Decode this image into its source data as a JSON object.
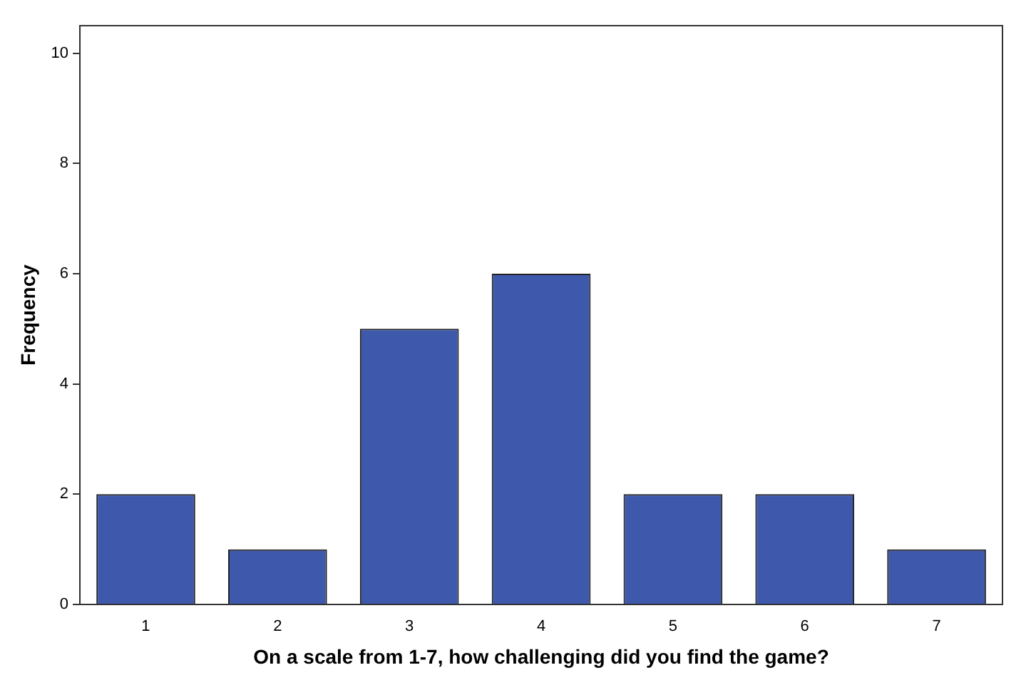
{
  "chart_data": {
    "type": "bar",
    "xlabel": "On a scale from 1-7, how challenging did you find the game?",
    "ylabel": "Frequency",
    "categories": [
      "1",
      "2",
      "3",
      "4",
      "5",
      "6",
      "7"
    ],
    "values": [
      2,
      1,
      5,
      6,
      2,
      2,
      1
    ],
    "color": "#3e58ac",
    "ylim": [
      0,
      10.5
    ],
    "yticks": [
      0,
      2,
      4,
      6,
      8,
      10
    ],
    "grid": false,
    "legend": false
  }
}
